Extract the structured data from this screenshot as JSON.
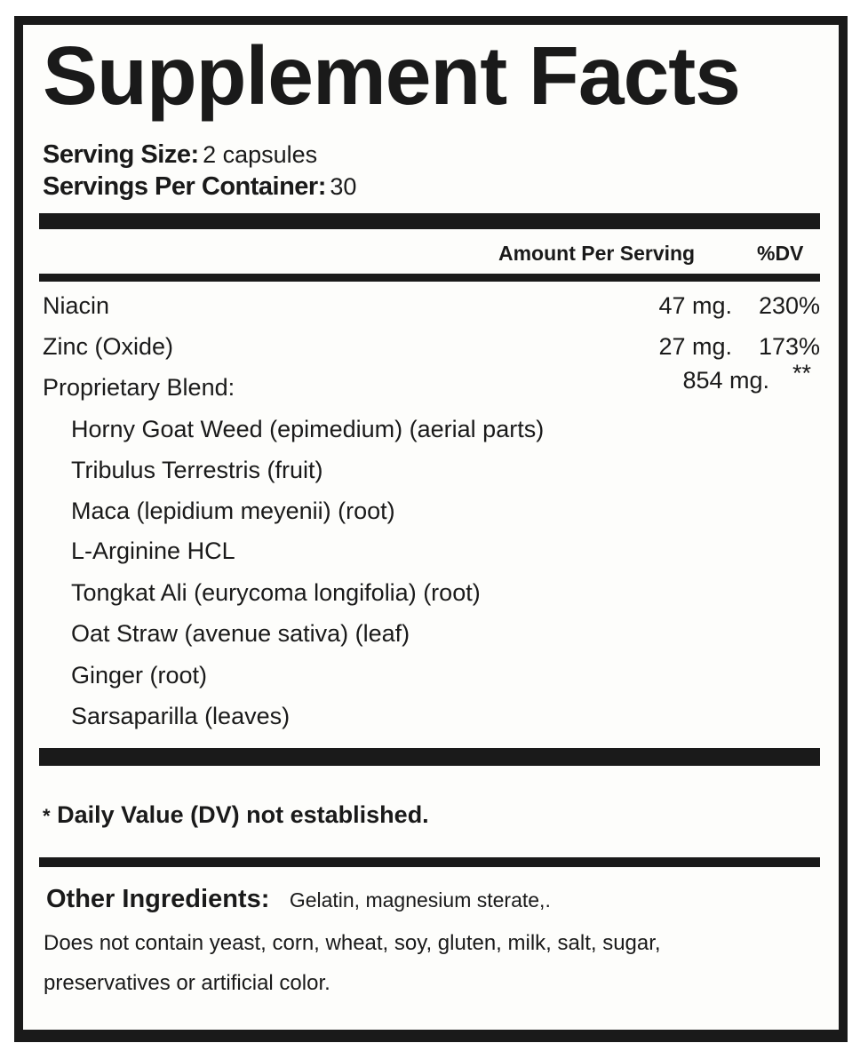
{
  "title": "Supplement Facts",
  "serving": {
    "size_label": "Serving Size:",
    "size_value": "2 capsules",
    "per_container_label": "Servings Per Container:",
    "per_container_value": "30"
  },
  "table": {
    "header_amount": "Amount Per Serving",
    "header_dv": "%DV",
    "rows": [
      {
        "name": "Niacin",
        "amount": "47 mg.",
        "dv": "230%"
      },
      {
        "name": "Zinc (Oxide)",
        "amount": "27 mg.",
        "dv": "173%"
      },
      {
        "name": "Proprietary Blend:",
        "amount": "854 mg.",
        "dv": "**"
      }
    ],
    "blend_items": [
      "Horny Goat Weed (epimedium) (aerial parts)",
      "Tribulus Terrestris (fruit)",
      "Maca (lepidium meyenii) (root)",
      "L-Arginine HCL",
      "Tongkat Ali (eurycoma longifolia) (root)",
      "Oat Straw (avenue sativa) (leaf)",
      "Ginger (root)",
      "Sarsaparilla (leaves)"
    ]
  },
  "footnote": {
    "marker": "*",
    "text": "Daily Value (DV) not established."
  },
  "other": {
    "label": "Other Ingredients:",
    "value": "Gelatin, magnesium sterate,.",
    "line1": "Does not contain yeast, corn, wheat, soy, gluten, milk, salt, sugar,",
    "line2": "preservatives or artificial color."
  }
}
